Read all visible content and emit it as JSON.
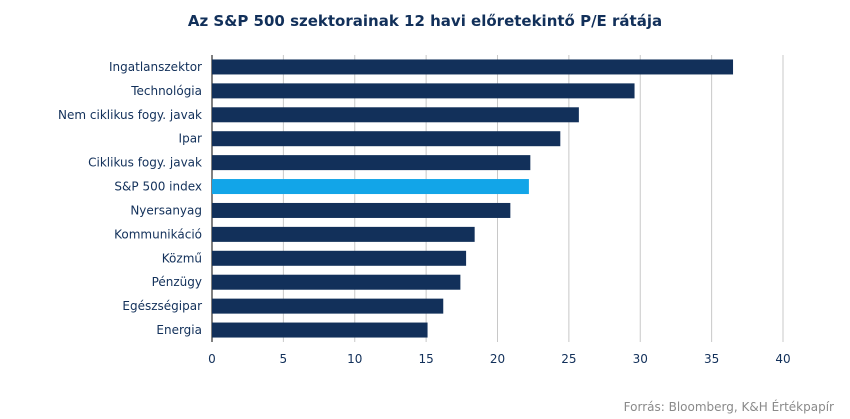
{
  "chart_data": {
    "type": "bar",
    "orientation": "horizontal",
    "title": "Az S&P 500 szektorainak 12 havi előretekintő P/E rátája",
    "categories": [
      "Ingatlanszektor",
      "Technológia",
      "Nem ciklikus fogy. javak",
      "Ipar",
      "Ciklikus fogy. javak",
      "S&P 500 index",
      "Nyersanyag",
      "Kommunikáció",
      "Közmű",
      "Pénzügy",
      "Egészségipar",
      "Energia"
    ],
    "values": [
      36.5,
      29.6,
      25.7,
      24.4,
      22.3,
      22.2,
      20.9,
      18.4,
      17.8,
      17.4,
      16.2,
      15.1
    ],
    "highlight": "S&P 500 index",
    "xlim": [
      0,
      40
    ],
    "xticks": [
      "0",
      "5",
      "10",
      "15",
      "20",
      "25",
      "30",
      "35",
      "40"
    ],
    "xlabel": "",
    "ylabel": "",
    "grid": "vertical",
    "colors": {
      "bar": "#12305a",
      "highlight": "#12a5e8",
      "grid": "#c8c8c8",
      "title": "#12305a"
    }
  },
  "source": "Forrás: Bloomberg, K&H Értékpapír"
}
